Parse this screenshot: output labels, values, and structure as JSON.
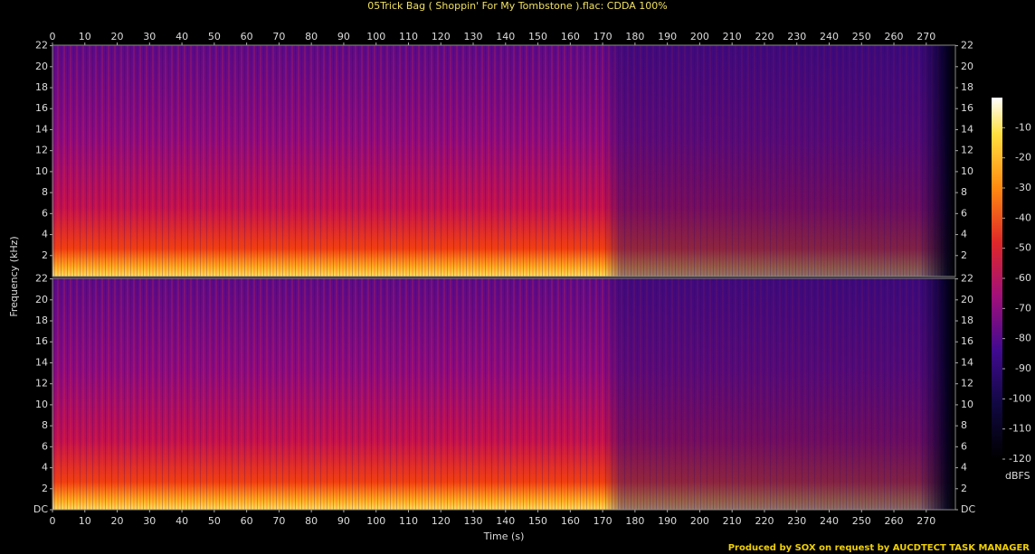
{
  "chart_data": {
    "type": "spectrogram",
    "title": "05Trick Bag ( Shoppin' For My Tombstone ).flac: CDDA 100%",
    "x_label": "Time (s)",
    "y_label": "Frequency (kHz)",
    "xlim": [
      0,
      279
    ],
    "xticks": [
      0,
      10,
      20,
      30,
      40,
      50,
      60,
      70,
      80,
      90,
      100,
      110,
      120,
      130,
      140,
      150,
      160,
      170,
      180,
      190,
      200,
      210,
      220,
      230,
      240,
      250,
      260,
      270
    ],
    "ylim": [
      0,
      22.05
    ],
    "yticks": [
      {
        "value": 0,
        "label": "DC"
      },
      2,
      4,
      6,
      8,
      10,
      12,
      14,
      16,
      18,
      20,
      22
    ],
    "colorbar_label": "dBFS",
    "colorbar_lim": [
      -120,
      0
    ],
    "colorbar_ticks": [
      -10,
      -20,
      -30,
      -40,
      -50,
      -60,
      -70,
      -80,
      -90,
      -100,
      -110,
      -120
    ],
    "footer": "Produced by SOX on request by AUCDTECT TASK MANAGER"
  }
}
